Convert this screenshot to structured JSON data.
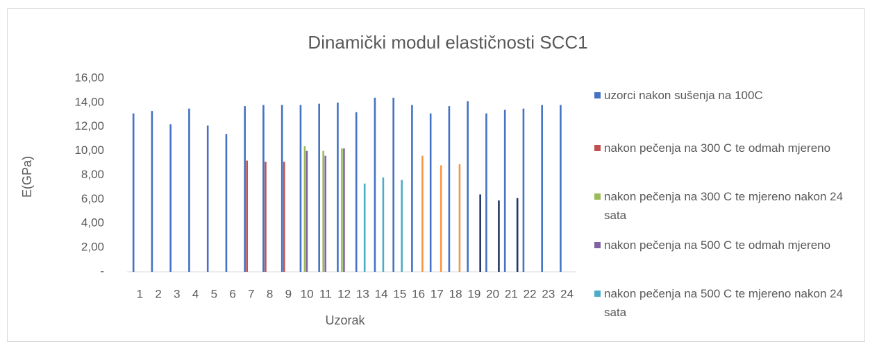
{
  "chart_data": {
    "type": "bar",
    "title": "Dinamički modul elastičnosti SCC1",
    "x_label": "Uzorak",
    "y_label": "E(GPa)",
    "categories": [
      "1",
      "2",
      "3",
      "4",
      "5",
      "6",
      "7",
      "8",
      "9",
      "10",
      "11",
      "12",
      "13",
      "14",
      "15",
      "16",
      "17",
      "18",
      "19",
      "20",
      "21",
      "22",
      "23",
      "24"
    ],
    "series": [
      {
        "name": "uzorci nakon sušenja na 100C",
        "color": "#4472c4",
        "values": [
          13.1,
          13.3,
          12.2,
          13.5,
          12.1,
          11.4,
          13.7,
          13.8,
          13.8,
          13.8,
          13.9,
          14.0,
          13.2,
          14.4,
          14.4,
          13.8,
          13.1,
          13.7,
          14.1,
          13.1,
          13.4,
          13.5,
          13.8,
          13.8
        ]
      },
      {
        "name": "nakon pečenja na 300 C te odmah mjereno",
        "color": "#c0504d",
        "values": [
          null,
          null,
          null,
          null,
          null,
          null,
          9.2,
          9.1,
          9.1,
          null,
          null,
          null,
          null,
          null,
          null,
          null,
          null,
          null,
          null,
          null,
          null,
          null,
          null,
          null
        ]
      },
      {
        "name": "nakon pečenja na 300 C te mjereno nakon 24 sata",
        "color": "#9bbb59",
        "values": [
          null,
          null,
          null,
          null,
          null,
          null,
          null,
          null,
          null,
          10.4,
          10.0,
          10.2,
          null,
          null,
          null,
          null,
          null,
          null,
          null,
          null,
          null,
          null,
          null,
          null
        ]
      },
      {
        "name": "nakon pečenja na 500 C te odmah mjereno",
        "color": "#8064a2",
        "values": [
          null,
          null,
          null,
          null,
          null,
          null,
          null,
          null,
          null,
          10.0,
          9.6,
          10.2,
          null,
          null,
          null,
          null,
          null,
          null,
          null,
          null,
          null,
          null,
          null,
          null
        ]
      },
      {
        "name": "nakon pečenja na 500 C te mjereno nakon 24 sata",
        "color": "#4bacc6",
        "values": [
          null,
          null,
          null,
          null,
          null,
          null,
          null,
          null,
          null,
          null,
          null,
          null,
          7.3,
          7.8,
          7.6,
          null,
          null,
          null,
          null,
          null,
          null,
          null,
          null,
          null
        ]
      },
      {
        "color": "#f79646",
        "values": [
          null,
          null,
          null,
          null,
          null,
          null,
          null,
          null,
          null,
          null,
          null,
          null,
          null,
          null,
          null,
          9.6,
          8.8,
          8.9,
          null,
          null,
          null,
          null,
          null,
          null
        ]
      },
      {
        "color": "#1f3864",
        "values": [
          null,
          null,
          null,
          null,
          null,
          null,
          null,
          null,
          null,
          null,
          null,
          null,
          null,
          null,
          null,
          null,
          null,
          null,
          6.4,
          5.9,
          6.1,
          null,
          null,
          null
        ]
      }
    ],
    "ylim": [
      0,
      16
    ],
    "yticks": [
      {
        "value": 0,
        "label": "-"
      },
      {
        "value": 2,
        "label": "2,00"
      },
      {
        "value": 4,
        "label": "4,00"
      },
      {
        "value": 6,
        "label": "6,00"
      },
      {
        "value": 8,
        "label": "8,00"
      },
      {
        "value": 10,
        "label": "10,00"
      },
      {
        "value": 12,
        "label": "12,00"
      },
      {
        "value": 14,
        "label": "14,00"
      },
      {
        "value": 16,
        "label": "16,00"
      }
    ],
    "grid": false,
    "legend": "right"
  }
}
